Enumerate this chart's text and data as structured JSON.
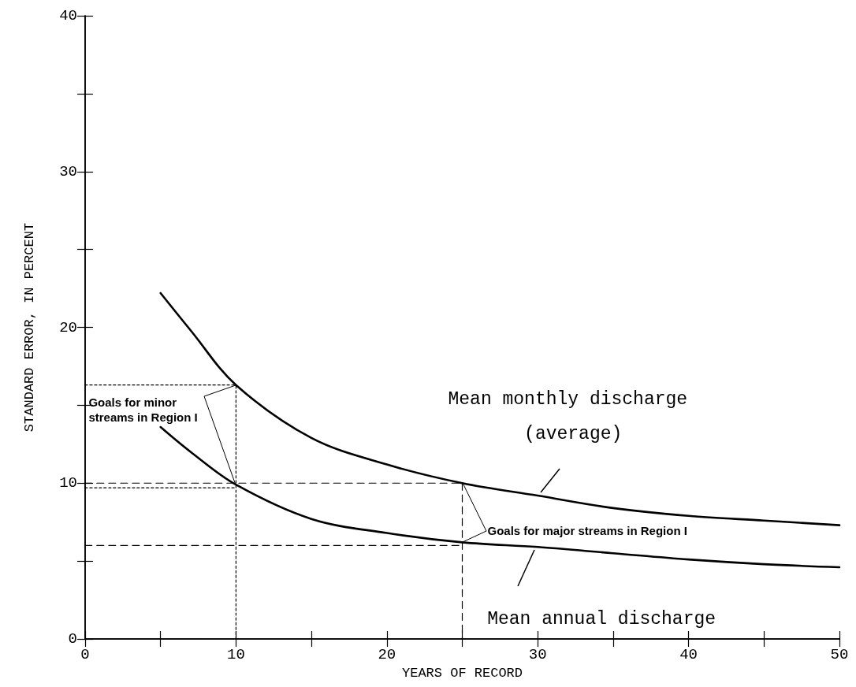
{
  "chart_data": {
    "type": "line",
    "xlabel": "YEARS OF RECORD",
    "ylabel": "STANDARD ERROR, IN PERCENT",
    "x": [
      5,
      7,
      10,
      15,
      20,
      25,
      30,
      35,
      40,
      45,
      50
    ],
    "series": [
      {
        "name": "Mean monthly discharge (average)",
        "color": "#000000",
        "values": [
          22.2,
          19.8,
          16.3,
          12.9,
          11.2,
          10.0,
          9.2,
          8.4,
          7.9,
          7.6,
          7.3
        ]
      },
      {
        "name": "Mean annual discharge",
        "color": "#000000",
        "values": [
          13.6,
          12.0,
          9.9,
          7.7,
          6.8,
          6.2,
          5.9,
          5.5,
          5.1,
          4.8,
          4.6
        ]
      },
      {
        "color": "#000000",
        "x": [
          0,
          10
        ],
        "values": [
          16.3,
          16.3
        ],
        "line_style": "dotted"
      },
      {
        "color": "#000000",
        "x": [
          10,
          10
        ],
        "values": [
          0,
          16.3
        ],
        "line_style": "dotted"
      },
      {
        "color": "#000000",
        "x": [
          0,
          10
        ],
        "values": [
          9.7,
          9.7
        ],
        "line_style": "dotted"
      },
      {
        "color": "#000000",
        "x": [
          0,
          25
        ],
        "values": [
          10.0,
          10.0
        ],
        "line_style": "dashed"
      },
      {
        "color": "#000000",
        "x": [
          25,
          25,
          25
        ],
        "values": [
          10.0,
          5,
          0
        ],
        "line_style": "dashed"
      },
      {
        "color": "#000000",
        "x": [
          0,
          25
        ],
        "values": [
          6.0,
          6.0
        ],
        "line_style": "dashed"
      }
    ],
    "annotations": [
      {
        "text": "Goals for minor\nstreams in Region I",
        "x": 10,
        "y": 16.3
      },
      {
        "text": "Goals for major streams in Region I",
        "x": 25,
        "y": 6.2
      }
    ],
    "xlim": [
      0,
      50
    ],
    "xticks": [
      0,
      {
        "value": 5,
        "label": null
      },
      10,
      {
        "value": 15,
        "label": null
      },
      20,
      {
        "value": 25,
        "label": null
      },
      30,
      {
        "value": 35,
        "label": null
      },
      40,
      {
        "value": 45,
        "label": null
      },
      50
    ],
    "ylim": [
      0,
      40
    ],
    "yticks": [
      0,
      {
        "value": 5,
        "label": null
      },
      10,
      {
        "value": 15,
        "label": null
      },
      20,
      {
        "value": 25,
        "label": null
      },
      30,
      {
        "value": 35,
        "label": null
      },
      40
    ],
    "grid": false,
    "legend": false,
    "marker": "none",
    "line_style": "solid"
  }
}
